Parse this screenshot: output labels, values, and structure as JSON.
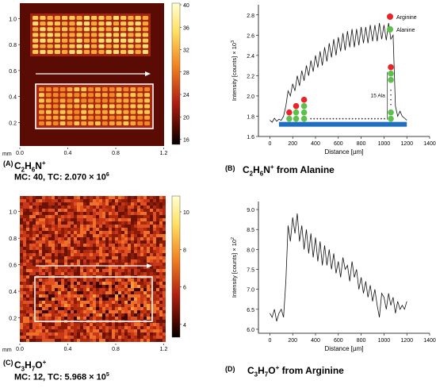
{
  "panels": {
    "A": {
      "letter": "(A)",
      "formula_base": "C",
      "formula_parts": [
        {
          "t": "C",
          "s": "n"
        },
        {
          "t": "2",
          "s": "sub"
        },
        {
          "t": "H",
          "s": "n"
        },
        {
          "t": "6",
          "s": "sub"
        },
        {
          "t": "N",
          "s": "n"
        },
        {
          "t": "+",
          "s": "sup"
        }
      ],
      "mc_tc": "MC: 40, TC: 2.070 × 10",
      "mc_tc_exp": "6",
      "y_ticks": [
        "1.0",
        "0.8",
        "0.6",
        "0.4",
        "0.2"
      ],
      "x_ticks": [
        "0.0",
        "0.4",
        "0.8",
        "1.2"
      ],
      "x_unit": "mm",
      "colorbar_ticks": [
        "40",
        "36",
        "32",
        "28",
        "24",
        "20",
        "16"
      ]
    },
    "B": {
      "letter": "(B)",
      "caption_parts": [
        {
          "t": "C",
          "s": "n"
        },
        {
          "t": "2",
          "s": "sub"
        },
        {
          "t": "H",
          "s": "n"
        },
        {
          "t": "6",
          "s": "sub"
        },
        {
          "t": "N",
          "s": "n"
        },
        {
          "t": "+",
          "s": "sup"
        },
        {
          "t": " from Alanine",
          "s": "n"
        }
      ],
      "ylabel": "Intensity [counts] × 10",
      "ylabel_exp": "3",
      "xlabel": "Distance [µm]",
      "legend": [
        {
          "label": "Arginine",
          "color": "#e8242a"
        },
        {
          "label": "Alanine",
          "color": "#5cc04a"
        }
      ],
      "annotation": "15 Ala",
      "y_ticks": [
        "2.8",
        "2.6",
        "2.4",
        "2.2",
        "2.0",
        "1.8",
        "1.6"
      ],
      "x_ticks": [
        "0",
        "200",
        "400",
        "600",
        "800",
        "1000",
        "1200",
        "1400"
      ]
    },
    "C": {
      "letter": "(C)",
      "formula_parts": [
        {
          "t": "C",
          "s": "n"
        },
        {
          "t": "3",
          "s": "sub"
        },
        {
          "t": "H",
          "s": "n"
        },
        {
          "t": "7",
          "s": "sub"
        },
        {
          "t": "O",
          "s": "n"
        },
        {
          "t": "+",
          "s": "sup"
        }
      ],
      "mc_tc": "MC: 12, TC: 5.968 × 10",
      "mc_tc_exp": "5",
      "y_ticks": [
        "1.0",
        "0.8",
        "0.6",
        "0.4",
        "0.2"
      ],
      "x_ticks": [
        "0.0",
        "0.4",
        "0.8",
        "1.2"
      ],
      "x_unit": "mm",
      "colorbar_ticks": [
        "10",
        "8",
        "6",
        "4"
      ]
    },
    "D": {
      "letter": "(D)",
      "caption_parts": [
        {
          "t": "C",
          "s": "n"
        },
        {
          "t": "3",
          "s": "sub"
        },
        {
          "t": "H",
          "s": "n"
        },
        {
          "t": "7",
          "s": "sub"
        },
        {
          "t": "O",
          "s": "n"
        },
        {
          "t": "+",
          "s": "sup"
        },
        {
          "t": " from Arginine",
          "s": "n"
        }
      ],
      "ylabel": "Intensity [counts] × 10",
      "ylabel_exp": "2",
      "xlabel": "Distance [µm]",
      "y_ticks": [
        "9.0",
        "8.5",
        "8.0",
        "7.5",
        "7.0",
        "6.5",
        "6.0"
      ],
      "x_ticks": [
        "0",
        "200",
        "400",
        "600",
        "800",
        "1000",
        "1200",
        "1400"
      ]
    }
  },
  "chart_data": [
    {
      "type": "line",
      "panel": "B",
      "xlabel": "Distance [µm]",
      "ylabel": "Intensity [counts] × 10^3",
      "xlim": [
        -100,
        1400
      ],
      "ylim": [
        1.6,
        2.9
      ],
      "series": [
        {
          "x": [
            0,
            20,
            40,
            60,
            80,
            100,
            120,
            140,
            160,
            180,
            200,
            220,
            240,
            260,
            280,
            300,
            320,
            340,
            360,
            380,
            400,
            420,
            440,
            460,
            480,
            500,
            520,
            540,
            560,
            580,
            600,
            620,
            640,
            660,
            680,
            700,
            720,
            740,
            760,
            780,
            800,
            820,
            840,
            860,
            880,
            900,
            920,
            940,
            960,
            980,
            1000,
            1020,
            1040,
            1060,
            1080,
            1100,
            1120,
            1140,
            1160,
            1180,
            1200
          ],
          "y": [
            1.76,
            1.74,
            1.78,
            1.75,
            1.77,
            1.76,
            1.8,
            1.9,
            2.05,
            2.0,
            2.12,
            2.05,
            2.2,
            2.1,
            2.25,
            2.15,
            2.3,
            2.2,
            2.35,
            2.24,
            2.4,
            2.28,
            2.44,
            2.3,
            2.48,
            2.34,
            2.52,
            2.38,
            2.56,
            2.4,
            2.58,
            2.44,
            2.62,
            2.45,
            2.64,
            2.48,
            2.66,
            2.48,
            2.66,
            2.5,
            2.68,
            2.52,
            2.68,
            2.52,
            2.7,
            2.54,
            2.7,
            2.54,
            2.72,
            2.56,
            2.7,
            2.55,
            2.72,
            2.56,
            2.6,
            1.9,
            1.8,
            1.85,
            1.8,
            1.78,
            1.76
          ]
        }
      ]
    },
    {
      "type": "line",
      "panel": "D",
      "xlabel": "Distance [µm]",
      "ylabel": "Intensity [counts] × 10^2",
      "xlim": [
        -100,
        1400
      ],
      "ylim": [
        5.9,
        9.2
      ],
      "series": [
        {
          "x": [
            0,
            20,
            40,
            60,
            80,
            100,
            120,
            140,
            160,
            180,
            200,
            220,
            240,
            260,
            280,
            300,
            320,
            340,
            360,
            380,
            400,
            420,
            440,
            460,
            480,
            500,
            520,
            540,
            560,
            580,
            600,
            620,
            640,
            660,
            680,
            700,
            720,
            740,
            760,
            780,
            800,
            820,
            840,
            860,
            880,
            900,
            920,
            940,
            960,
            980,
            1000,
            1020,
            1040,
            1060,
            1080,
            1100,
            1120,
            1140,
            1160,
            1180,
            1200
          ],
          "y": [
            6.4,
            6.3,
            6.5,
            6.2,
            6.4,
            6.5,
            6.3,
            7.2,
            8.6,
            8.2,
            8.8,
            8.4,
            8.9,
            8.2,
            8.6,
            8.0,
            8.5,
            7.9,
            8.4,
            7.8,
            8.3,
            7.7,
            8.2,
            7.6,
            8.1,
            7.6,
            8.0,
            7.5,
            7.9,
            7.4,
            7.7,
            7.3,
            7.8,
            7.5,
            7.6,
            7.2,
            7.7,
            7.3,
            7.5,
            7.0,
            7.3,
            6.9,
            7.2,
            6.8,
            7.1,
            6.7,
            7.0,
            6.6,
            6.3,
            6.9,
            6.8,
            6.5,
            6.9,
            6.6,
            6.8,
            6.4,
            6.7,
            6.5,
            6.6,
            6.5,
            6.7
          ]
        }
      ]
    }
  ]
}
